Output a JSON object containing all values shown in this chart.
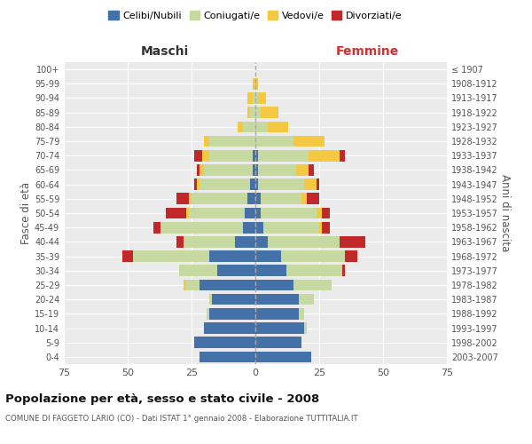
{
  "age_groups": [
    "0-4",
    "5-9",
    "10-14",
    "15-19",
    "20-24",
    "25-29",
    "30-34",
    "35-39",
    "40-44",
    "45-49",
    "50-54",
    "55-59",
    "60-64",
    "65-69",
    "70-74",
    "75-79",
    "80-84",
    "85-89",
    "90-94",
    "95-99",
    "100+"
  ],
  "birth_years": [
    "2003-2007",
    "1998-2002",
    "1993-1997",
    "1988-1992",
    "1983-1987",
    "1978-1982",
    "1973-1977",
    "1968-1972",
    "1963-1967",
    "1958-1962",
    "1953-1957",
    "1948-1952",
    "1943-1947",
    "1938-1942",
    "1933-1937",
    "1928-1932",
    "1923-1927",
    "1918-1922",
    "1913-1917",
    "1908-1912",
    "≤ 1907"
  ],
  "males": {
    "celibi": [
      22,
      24,
      20,
      18,
      17,
      22,
      15,
      18,
      8,
      5,
      4,
      3,
      2,
      1,
      1,
      0,
      0,
      0,
      0,
      0,
      0
    ],
    "coniugati": [
      0,
      0,
      0,
      1,
      1,
      5,
      15,
      30,
      20,
      32,
      22,
      22,
      20,
      19,
      17,
      18,
      5,
      2,
      1,
      0,
      0
    ],
    "vedovi": [
      0,
      0,
      0,
      0,
      0,
      1,
      0,
      0,
      0,
      0,
      1,
      1,
      1,
      2,
      3,
      2,
      2,
      1,
      2,
      1,
      0
    ],
    "divorziati": [
      0,
      0,
      0,
      0,
      0,
      0,
      0,
      4,
      3,
      3,
      8,
      5,
      1,
      1,
      3,
      0,
      0,
      0,
      0,
      0,
      0
    ]
  },
  "females": {
    "nubili": [
      22,
      18,
      19,
      17,
      17,
      15,
      12,
      10,
      5,
      3,
      2,
      2,
      1,
      1,
      1,
      0,
      0,
      0,
      0,
      0,
      0
    ],
    "coniugate": [
      0,
      0,
      1,
      2,
      6,
      15,
      22,
      25,
      28,
      22,
      22,
      16,
      18,
      15,
      20,
      15,
      5,
      2,
      1,
      0,
      0
    ],
    "vedove": [
      0,
      0,
      0,
      0,
      0,
      0,
      0,
      0,
      0,
      1,
      2,
      2,
      5,
      5,
      12,
      12,
      8,
      7,
      3,
      1,
      0
    ],
    "divorziate": [
      0,
      0,
      0,
      0,
      0,
      0,
      1,
      5,
      10,
      3,
      3,
      5,
      1,
      2,
      2,
      0,
      0,
      0,
      0,
      0,
      0
    ]
  },
  "colors": {
    "celibi": "#4472a8",
    "coniugati": "#c5d9a0",
    "vedovi": "#f5c842",
    "divorziati": "#c0282a"
  },
  "title": "Popolazione per età, sesso e stato civile - 2008",
  "subtitle": "COMUNE DI FAGGETO LARIO (CO) - Dati ISTAT 1° gennaio 2008 - Elaborazione TUTTITALIA.IT",
  "xlabel_left": "Maschi",
  "xlabel_right": "Femmine",
  "ylabel_left": "Fasce di età",
  "ylabel_right": "Anni di nascita",
  "xlim": 75,
  "background_color": "#ffffff",
  "plot_bg_color": "#ebebeb",
  "grid_color": "#ffffff",
  "legend_labels": [
    "Celibi/Nubili",
    "Coniugati/e",
    "Vedovi/e",
    "Divorziati/e"
  ]
}
